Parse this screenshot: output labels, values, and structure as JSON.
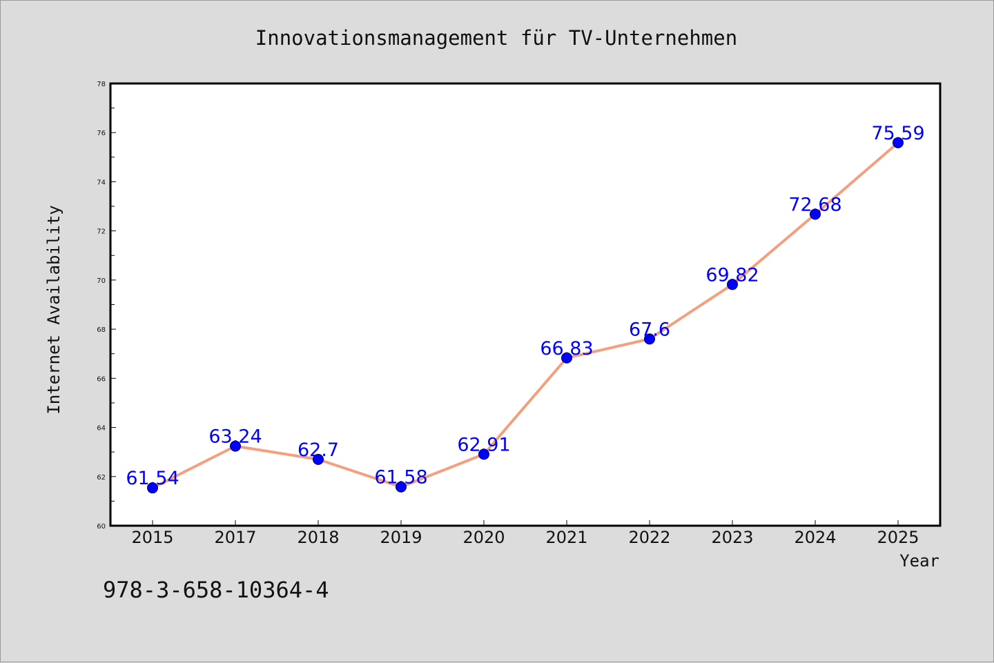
{
  "footnote": "978-3-658-10364-4",
  "colors": {
    "background": "#dcdcdc",
    "plot_background": "#ffffff",
    "line": "#f4a07f",
    "marker": "#0000ff",
    "data_label": "#0000ff"
  },
  "chart_data": {
    "type": "line",
    "title": "Innovationsmanagement für TV-Unternehmen",
    "xlabel": "Year",
    "ylabel": "Internet Availability",
    "categories": [
      "2015",
      "2017",
      "2018",
      "2019",
      "2020",
      "2021",
      "2022",
      "2023",
      "2024",
      "2025"
    ],
    "series": [
      {
        "values": [
          61.54,
          63.24,
          62.7,
          61.58,
          62.91,
          66.83,
          67.6,
          69.82,
          72.68,
          75.59
        ],
        "labels": [
          "61.54",
          "63.24",
          "62.7",
          "61.58",
          "62.91",
          "66.83",
          "67.6",
          "69.82",
          "72.68",
          "75.59"
        ]
      }
    ],
    "ylim": [
      60,
      78
    ],
    "yticks": [
      "60",
      "62",
      "64",
      "66",
      "68",
      "70",
      "72",
      "74",
      "76",
      "78"
    ],
    "grid": false,
    "legend": "none"
  }
}
